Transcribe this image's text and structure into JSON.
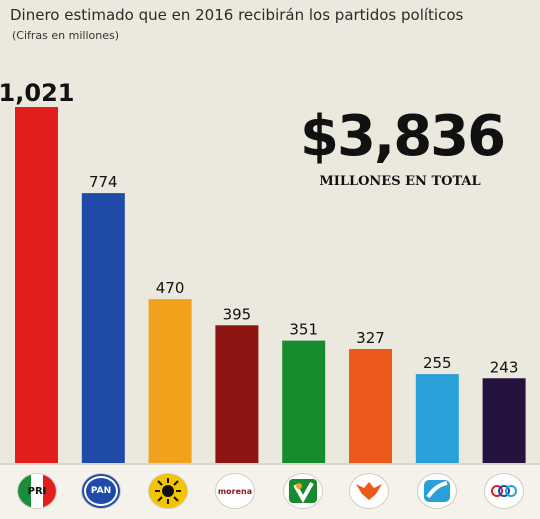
{
  "title": "Dinero estimado que en 2016 recibirán los partidos políticos",
  "subtitle": "(Cifras en millones)",
  "total": {
    "value": "$3,836",
    "label": "MILLONES EN TOTAL"
  },
  "colors": {
    "bars": [
      "#e11f1c",
      "#1f4aa8",
      "#f0a21d",
      "#8e1612",
      "#168c2e",
      "#ec5a1b",
      "#29a1d8",
      "#26123f"
    ]
  },
  "logos": [
    {
      "icon": "pri-logo-icon",
      "text": "PRI"
    },
    {
      "icon": "pan-logo-icon",
      "text": "PAN"
    },
    {
      "icon": "prd-logo-icon",
      "text": ""
    },
    {
      "icon": "morena-logo-icon",
      "text": "morena"
    },
    {
      "icon": "pvem-logo-icon",
      "text": ""
    },
    {
      "icon": "movimiento-ciudadano-logo-icon",
      "text": ""
    },
    {
      "icon": "nueva-alianza-logo-icon",
      "text": ""
    },
    {
      "icon": "encuentro-social-logo-icon",
      "text": ""
    }
  ],
  "chart_data": {
    "type": "bar",
    "categories": [
      "PRI",
      "PAN",
      "PRD",
      "Morena",
      "PVEM",
      "Movimiento Ciudadano",
      "Nueva Alianza",
      "Encuentro Social"
    ],
    "values": [
      1021,
      774,
      470,
      395,
      351,
      327,
      255,
      243
    ],
    "value_labels": [
      "1,021",
      "774",
      "470",
      "395",
      "351",
      "327",
      "255",
      "243"
    ],
    "title": "Dinero estimado que en 2016 recibirán los partidos políticos",
    "subtitle": "(Cifras en millones)",
    "ylim": [
      0,
      1021
    ],
    "grid": false,
    "legend": "none"
  }
}
